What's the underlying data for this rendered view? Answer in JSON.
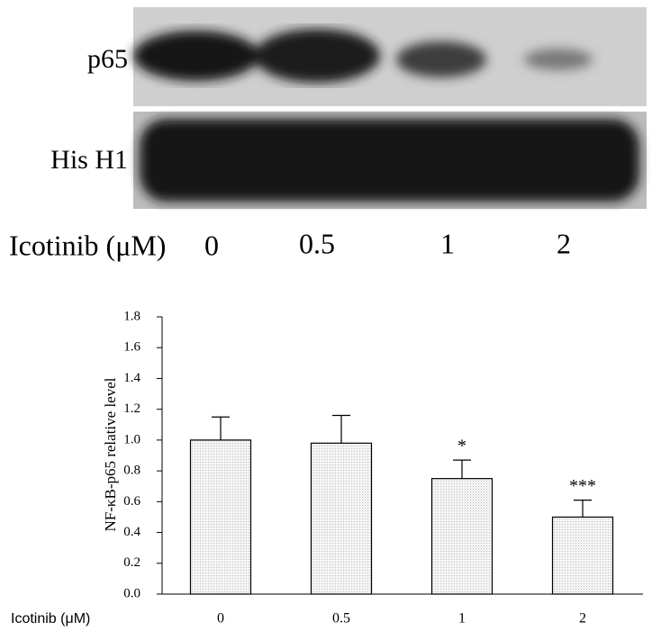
{
  "blot": {
    "row_labels": [
      "p65",
      "His H1"
    ],
    "x_label": "Icotinib (μM)",
    "lanes": [
      "0",
      "0.5",
      "1",
      "2"
    ]
  },
  "chart_data": {
    "type": "bar",
    "y_label": "NF-κB-p65 relative level",
    "x_label": "Icotinib (μM)",
    "categories": [
      "0",
      "0.5",
      "1",
      "2"
    ],
    "values": [
      1.0,
      0.98,
      0.75,
      0.5
    ],
    "errors": [
      0.15,
      0.18,
      0.12,
      0.11
    ],
    "significance": [
      null,
      null,
      "*",
      "***"
    ],
    "color": "#ececec",
    "ylim": [
      0,
      1.8
    ],
    "yticks": [
      {
        "value": 0,
        "label": "0.0"
      },
      0.2,
      0.4,
      0.6,
      0.8,
      {
        "value": 1,
        "label": "1.0"
      },
      1.2,
      1.4,
      1.6,
      1.8
    ]
  }
}
